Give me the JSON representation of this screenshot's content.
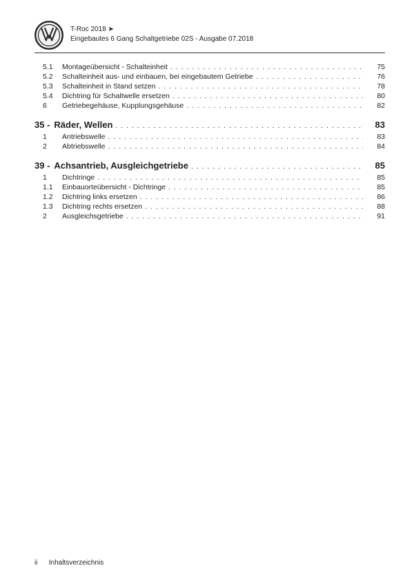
{
  "header": {
    "model": "T-Roc 2018 ➤",
    "subtitle": "Eingebautes 6 Gang Schaltgetriebe 02S - Ausgabe 07.2018"
  },
  "toc": {
    "pre_items": [
      {
        "num": "5.1",
        "title": "Montageübersicht - Schalteinheit",
        "page": "75"
      },
      {
        "num": "5.2",
        "title": "Schalteinheit aus- und einbauen, bei eingebautem Getriebe",
        "page": "76"
      },
      {
        "num": "5.3",
        "title": "Schalteinheit in Stand setzen",
        "page": "78"
      },
      {
        "num": "5.4",
        "title": "Dichtring für Schaltwelle ersetzen",
        "page": "80"
      },
      {
        "num": "6",
        "title": "Getriebegehäuse, Kupplungsgehäuse",
        "page": "82"
      }
    ],
    "chapters": [
      {
        "num": "35 -",
        "title": "Räder, Wellen",
        "page": "83",
        "items": [
          {
            "num": "1",
            "title": "Antriebswelle",
            "page": "83"
          },
          {
            "num": "2",
            "title": "Abtriebswelle",
            "page": "84"
          }
        ]
      },
      {
        "num": "39 -",
        "title": "Achsantrieb, Ausgleichgetriebe",
        "page": "85",
        "items": [
          {
            "num": "1",
            "title": "Dichtringe",
            "page": "85"
          },
          {
            "num": "1.1",
            "title": "Einbauorteübersicht - Dichtringe",
            "page": "85"
          },
          {
            "num": "1.2",
            "title": "Dichtring links ersetzen",
            "page": "86"
          },
          {
            "num": "1.3",
            "title": "Dichtring rechts ersetzen",
            "page": "88"
          },
          {
            "num": "2",
            "title": "Ausgleichsgetriebe",
            "page": "91"
          }
        ]
      }
    ]
  },
  "footer": {
    "page_number": "ii",
    "label": "Inhaltsverzeichnis"
  },
  "colors": {
    "text": "#222222",
    "rule": "#333333",
    "background": "#ffffff",
    "logo_ring": "#2a2a2a",
    "logo_bg": "#f4f4f4"
  }
}
